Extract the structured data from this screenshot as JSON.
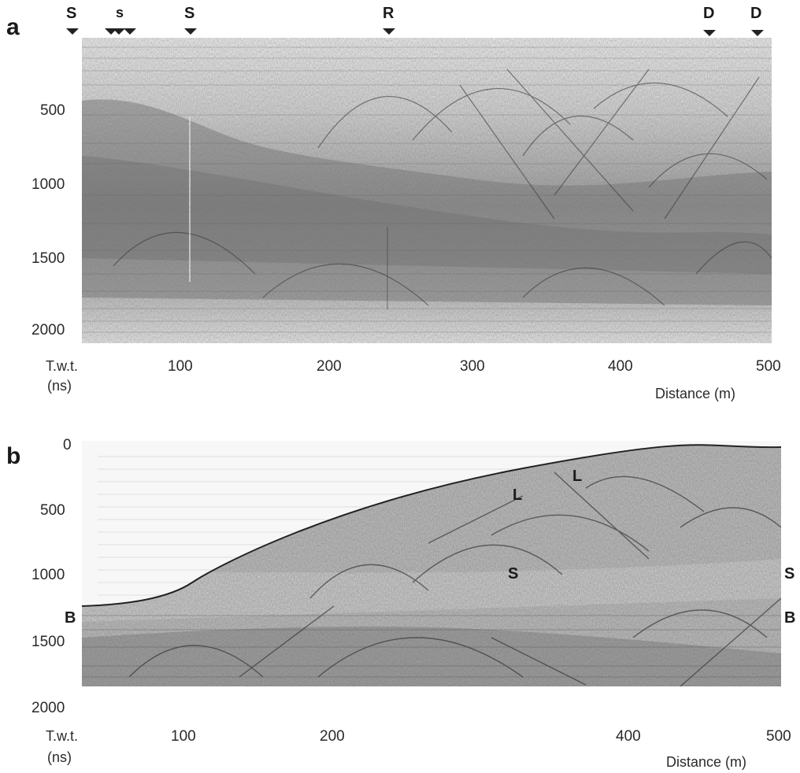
{
  "panel_a": {
    "letter": "a",
    "markers": [
      "S",
      "s",
      "S",
      "R",
      "D",
      "D"
    ],
    "y_ticks": [
      "500",
      "1000",
      "1500",
      "2000"
    ],
    "x_ticks": [
      "100",
      "200",
      "300",
      "400",
      "500"
    ],
    "y_title_line1": "T.w.t.",
    "y_title_line2": "(ns)",
    "x_title": "Distance (m)"
  },
  "panel_b": {
    "letter": "b",
    "y_ticks": [
      "0",
      "500",
      "1000",
      "1500",
      "2000"
    ],
    "x_ticks": [
      "100",
      "200",
      "400",
      "500"
    ],
    "y_title_line1": "T.w.t.",
    "y_title_line2": "(ns)",
    "x_title": "Distance (m)",
    "interior_labels": {
      "l1": "L",
      "l2": "L",
      "s_mid": "S",
      "s_right": "S",
      "b_left": "B",
      "b_right": "B"
    }
  }
}
